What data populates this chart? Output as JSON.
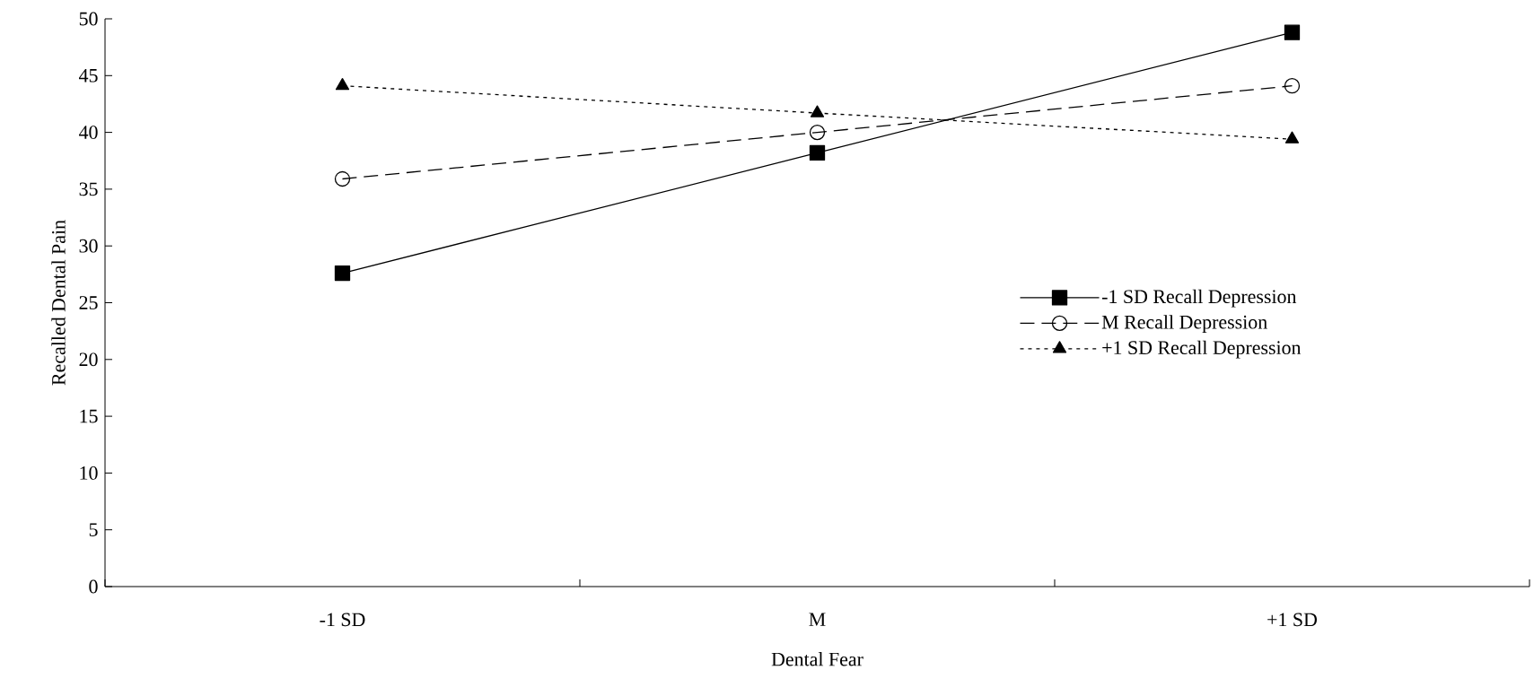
{
  "chart_data": {
    "type": "line",
    "xlabel": "Dental Fear",
    "ylabel": "Recalled Dental Pain",
    "categories": [
      "-1 SD",
      "M",
      "+1 SD"
    ],
    "series": [
      {
        "name": "-1 SD Recall Depression",
        "color": "#000000",
        "marker": "square",
        "line_style": "solid",
        "values": [
          27.6,
          38.2,
          48.8
        ]
      },
      {
        "name": "M Recall Depression",
        "color": "#000000",
        "marker": "circle",
        "line_style": "dashed",
        "values": [
          35.9,
          40.0,
          44.1
        ]
      },
      {
        "name": "+1 SD Recall Depression",
        "color": "#000000",
        "marker": "triangle",
        "line_style": "dotted",
        "values": [
          44.1,
          41.7,
          39.4
        ]
      }
    ],
    "ylim": [
      0,
      50
    ],
    "yticks": [
      0,
      5,
      10,
      15,
      20,
      25,
      30,
      35,
      40,
      45,
      50
    ],
    "legend": "right",
    "grid": false
  }
}
